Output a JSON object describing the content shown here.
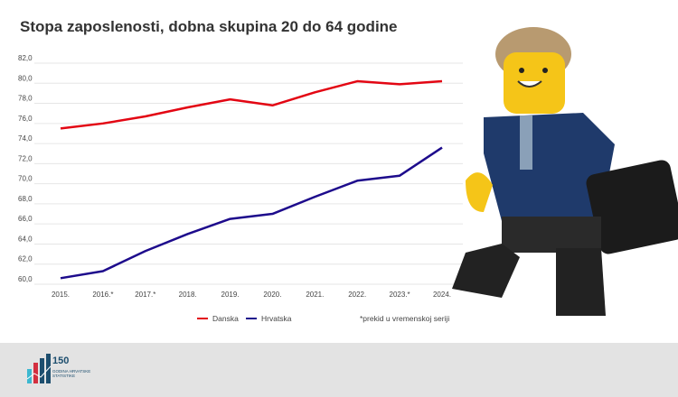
{
  "chart_data": {
    "type": "line",
    "title": "Stopa zaposlenosti, dobna skupina 20 do 64 godine",
    "categories": [
      "2015.",
      "2016.*",
      "2017.*",
      "2018.",
      "2019.",
      "2020.",
      "2021.",
      "2022.",
      "2023.*",
      "2024."
    ],
    "series": [
      {
        "name": "Danska",
        "color": "#e30613",
        "values": [
          75.5,
          76.0,
          76.7,
          77.6,
          78.4,
          77.8,
          79.1,
          80.2,
          79.9,
          80.2
        ]
      },
      {
        "name": "Hrvatska",
        "color": "#1d0b8c",
        "values": [
          60.6,
          61.3,
          63.3,
          65.0,
          66.5,
          67.0,
          68.7,
          70.3,
          70.8,
          73.6
        ]
      }
    ],
    "yticks": [
      "60,0",
      "62,0",
      "64,0",
      "66,0",
      "68,0",
      "70,0",
      "72,0",
      "74,0",
      "76,0",
      "78,0",
      "80,0",
      "82,0"
    ],
    "ylim": [
      60,
      82
    ],
    "grid": true,
    "legend_position": "bottom",
    "note": "*prekid u vremenskoj seriji"
  },
  "logo": {
    "number": "150",
    "line1": "GODINA HRVATSKE",
    "line2": "STATISTIKE"
  }
}
